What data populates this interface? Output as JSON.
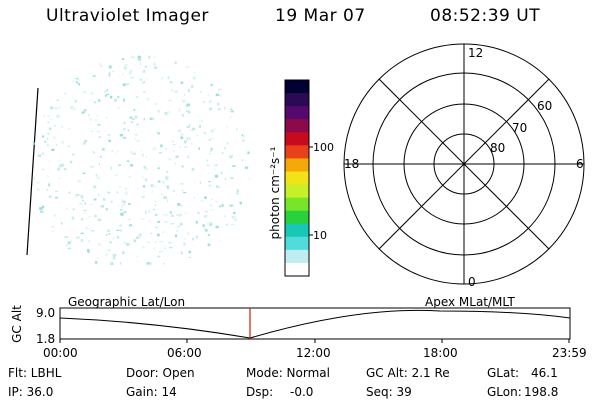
{
  "header": {
    "title": "Ultraviolet Imager",
    "date": "19 Mar 07",
    "time": "08:52:39 UT"
  },
  "colorbar": {
    "label": "photon cm⁻²s⁻¹",
    "ticks": [
      "100",
      "10"
    ],
    "colors": [
      "#000033",
      "#2a0a55",
      "#55086e",
      "#8a0a4a",
      "#c80a1e",
      "#e8401a",
      "#f5a80a",
      "#f2e218",
      "#c8f028",
      "#78e628",
      "#28d23c",
      "#18c8b4",
      "#50dcdc",
      "#c0eef0",
      "#ffffff"
    ]
  },
  "polar": {
    "labels": {
      "top": "12",
      "bottom": "0",
      "left": "18",
      "right": "6"
    },
    "lat_labels": [
      "60",
      "70",
      "80"
    ]
  },
  "timeline": {
    "label_left": "Geographic Lat/Lon",
    "label_right": "Apex MLat/MLT",
    "yaxis_title": "GC Alt",
    "ymax": "9.0",
    "ymin": "1.8",
    "xticks": [
      "00:00",
      "06:00",
      "12:00",
      "18:00",
      "23:59"
    ],
    "marker_color": "#cc2200"
  },
  "status": {
    "flt": "Flt: LBHL",
    "door": "Door: Open",
    "mode": "Mode: Normal",
    "gcalt": "GC Alt: 2.1 Re",
    "glat_label": "GLat:",
    "glat_value": "46.1",
    "ip": "IP: 36.0",
    "gain": "Gain: 14",
    "dsp_label": "Dsp:",
    "dsp_value": "-0.0",
    "seq": "Seq: 39",
    "glon_label": "GLon:",
    "glon_value": "198.8"
  }
}
